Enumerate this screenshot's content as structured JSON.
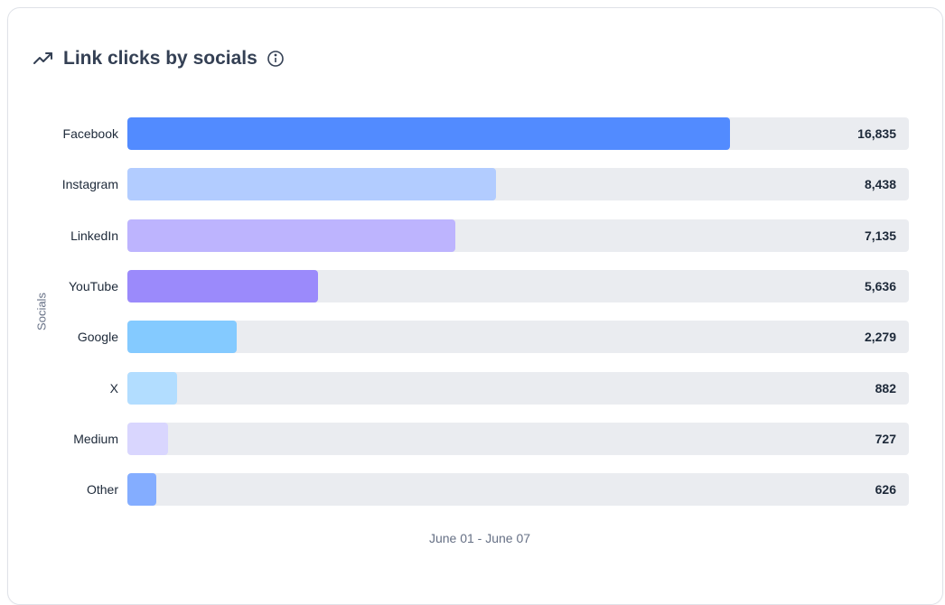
{
  "chart_data": {
    "type": "bar",
    "orientation": "horizontal",
    "title": "Link clicks by socials",
    "ylabel": "Socials",
    "xlabel": "June 01 - June 07",
    "categories": [
      "Facebook",
      "Instagram",
      "LinkedIn",
      "YouTube",
      "Google",
      "X",
      "Medium",
      "Other"
    ],
    "values": [
      16835,
      8438,
      7135,
      5636,
      2279,
      882,
      727,
      626
    ],
    "value_labels": [
      "16,835",
      "8,438",
      "7,135",
      "5,636",
      "2,279",
      "882",
      "727",
      "626"
    ],
    "fill_fraction": [
      0.771,
      0.472,
      0.42,
      0.244,
      0.14,
      0.064,
      0.052,
      0.037
    ],
    "colors": [
      "#528bff",
      "#b2ccff",
      "#bdb4fe",
      "#9b8afb",
      "#84caff",
      "#b2ddff",
      "#d9d6fe",
      "#84adff"
    ],
    "track_color": "#eaecf0",
    "grid": false
  },
  "header": {
    "icon": "trend-up-icon",
    "info_icon": "info-icon"
  }
}
